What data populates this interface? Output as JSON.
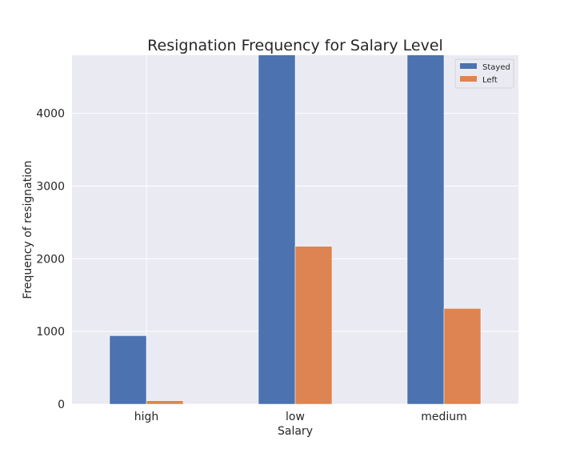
{
  "chart_data": {
    "type": "bar",
    "title": "Resignation Frequency for Salary Level",
    "xlabel": "Salary",
    "ylabel": "Frequency of resignation",
    "categories": [
      "high",
      "low",
      "medium"
    ],
    "series": [
      {
        "name": "Stayed",
        "color": "#4c72b0",
        "values": [
          942,
          5144,
          5129
        ]
      },
      {
        "name": "Left",
        "color": "#dd8452",
        "values": [
          48,
          2172,
          1317
        ]
      }
    ],
    "ylim": [
      0,
      4800
    ],
    "yticks": [
      0,
      1000,
      2000,
      3000,
      4000
    ],
    "ytick_labels": [
      "0",
      "1000",
      "2000",
      "3000",
      "4000"
    ],
    "grid": true,
    "legend": "top-right"
  }
}
